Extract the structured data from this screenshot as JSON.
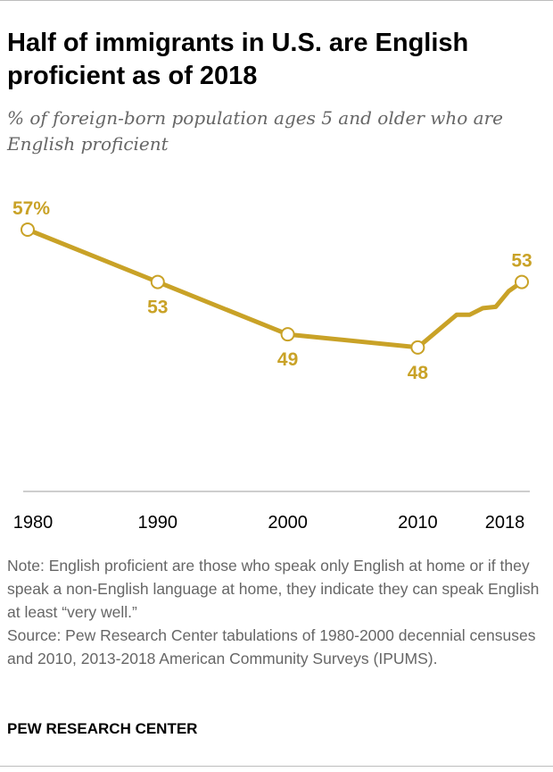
{
  "title": "Half of immigrants in U.S. are English proficient as of 2018",
  "subtitle": "% of foreign-born population ages 5 and older who are English proficient",
  "chart_data": {
    "type": "line",
    "title": "Half of immigrants in U.S. are English proficient as of 2018",
    "subtitle": "% of foreign-born population ages 5 and older who are English proficient",
    "xlabel": "",
    "ylabel": "",
    "x": [
      1980,
      1990,
      2000,
      2010,
      2013,
      2014,
      2015,
      2016,
      2017,
      2018
    ],
    "values": [
      57,
      53,
      49,
      48,
      50.5,
      50.5,
      51.0,
      51.1,
      52.3,
      53
    ],
    "ylim": [
      37,
      60
    ],
    "x_ticks": [
      "1980",
      "1990",
      "2000",
      "2010",
      "2018"
    ],
    "x_tick_values": [
      1980,
      1990,
      2000,
      2010,
      2018
    ],
    "labeled_points": [
      {
        "year": 1980,
        "label": "57%",
        "position": "above"
      },
      {
        "year": 1990,
        "label": "53",
        "position": "below"
      },
      {
        "year": 2000,
        "label": "49",
        "position": "below"
      },
      {
        "year": 2010,
        "label": "48",
        "position": "below"
      },
      {
        "year": 2018,
        "label": "53",
        "position": "above"
      }
    ],
    "grid": false,
    "line_color": "#c9a227"
  },
  "note": "Note: English proficient are those who speak only English at home or if they speak a non-English language at home, they indicate they can speak English at least “very well.”",
  "source": "Source: Pew Research Center tabulations of 1980-2000 decennial censuses and 2010, 2013-2018 American Community Surveys (IPUMS).",
  "footer": "PEW RESEARCH CENTER"
}
